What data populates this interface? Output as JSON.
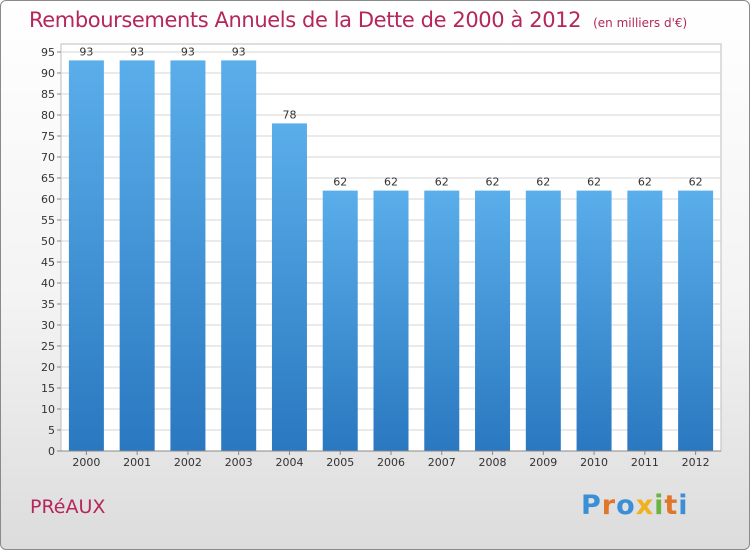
{
  "header": {
    "title": "Remboursements Annuels de la Dette de 2000 à 2012",
    "unit": "(en milliers d'€)"
  },
  "footer": {
    "commune": "PRéAUX",
    "logo": [
      "P",
      "r",
      "o",
      "x",
      "i",
      "t",
      "i"
    ],
    "logo_colors": [
      "#3a8fd6",
      "#e0762a",
      "#3a8fd6",
      "#f0b020",
      "#6db33f",
      "#e0762a",
      "#3a8fd6"
    ]
  },
  "colors": {
    "bar": "#4a9fe0",
    "accent": "#b5265a"
  },
  "chart_data": {
    "type": "bar",
    "categories": [
      "2000",
      "2001",
      "2002",
      "2003",
      "2004",
      "2005",
      "2006",
      "2007",
      "2008",
      "2009",
      "2010",
      "2011",
      "2012"
    ],
    "values": [
      93,
      93,
      93,
      93,
      78,
      62,
      62,
      62,
      62,
      62,
      62,
      62,
      62
    ],
    "title": "Remboursements Annuels de la Dette de 2000 à 2012",
    "ylim": [
      0,
      95
    ],
    "yticks": [
      0,
      5,
      10,
      15,
      20,
      25,
      30,
      35,
      40,
      45,
      50,
      55,
      60,
      65,
      70,
      75,
      80,
      85,
      90,
      95
    ],
    "grid": true,
    "data_labels": true
  }
}
